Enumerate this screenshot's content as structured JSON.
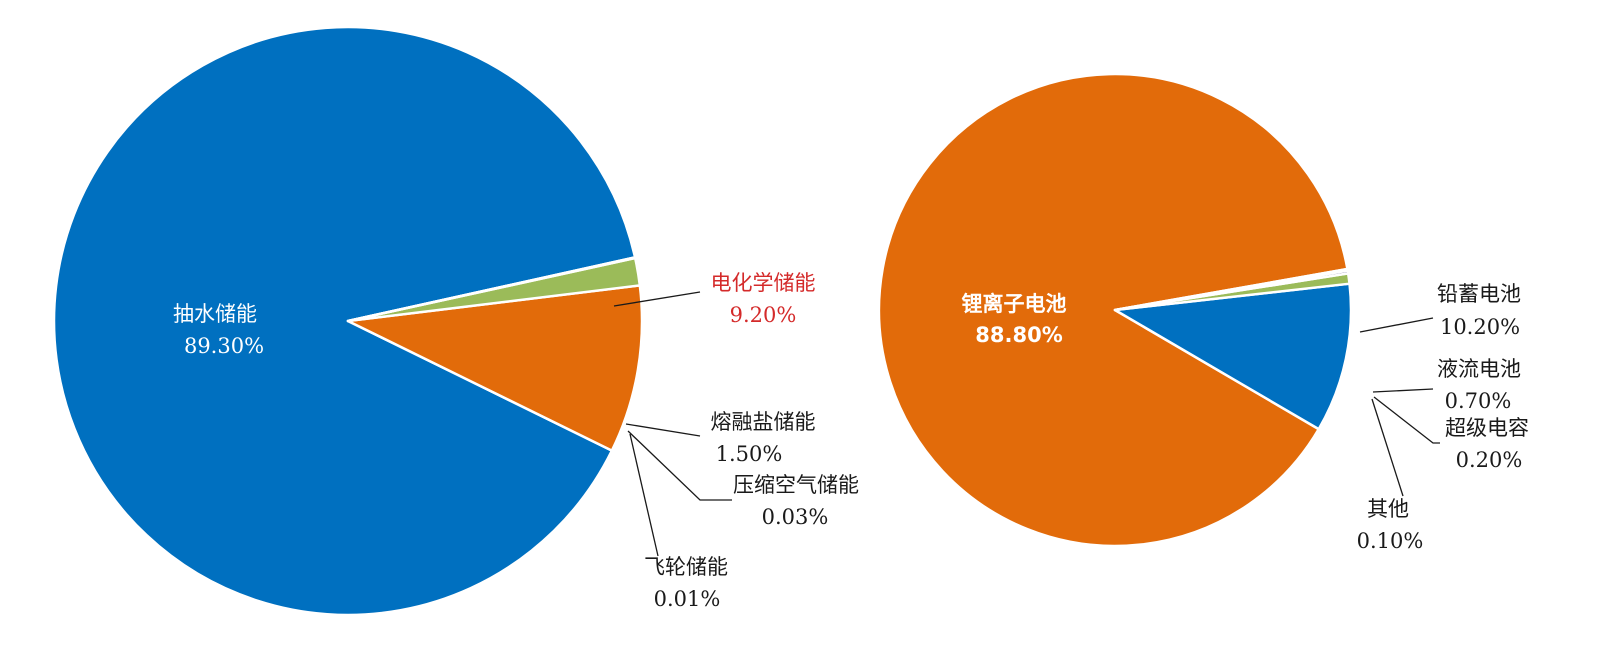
{
  "colors": {
    "blue": "#0070C0",
    "orange": "#E26B0A",
    "green": "#9BBB59",
    "gray": "#7f7fa8",
    "label_red": "#d42a2a",
    "slice_border": "#ffffff"
  },
  "chart_data": [
    {
      "type": "pie",
      "title": "",
      "start_angle_deg": -12.5,
      "direction": "counterclockwise",
      "series": [
        {
          "name": "抽水储能",
          "value": 89.3,
          "label": "89.30%",
          "color": "#0070C0",
          "label_placement": "inside"
        },
        {
          "name": "电化学储能",
          "value": 9.2,
          "label": "9.20%",
          "color": "#E26B0A",
          "label_placement": "outside",
          "label_color": "#d42a2a"
        },
        {
          "name": "熔融盐储能",
          "value": 1.5,
          "label": "1.50%",
          "color": "#9BBB59",
          "label_placement": "outside"
        },
        {
          "name": "压缩空气储能",
          "value": 0.03,
          "label": "0.03%",
          "color": "#0070C0",
          "label_placement": "outside"
        },
        {
          "name": "飞轮储能",
          "value": 0.01,
          "label": "0.01%",
          "color": "#0070C0",
          "label_placement": "outside"
        }
      ]
    },
    {
      "type": "pie",
      "title": "",
      "start_angle_deg": -10,
      "direction": "counterclockwise",
      "series": [
        {
          "name": "锂离子电池",
          "value": 88.8,
          "label": "88.80%",
          "color": "#E26B0A",
          "label_placement": "inside",
          "label_bold": true
        },
        {
          "name": "铅蓄电池",
          "value": 10.2,
          "label": "10.20%",
          "color": "#0070C0",
          "label_placement": "outside"
        },
        {
          "name": "液流电池",
          "value": 0.7,
          "label": "0.70%",
          "color": "#9BBB59",
          "label_placement": "outside"
        },
        {
          "name": "超级电容",
          "value": 0.2,
          "label": "0.20%",
          "color": "#7f7fa8",
          "label_placement": "outside"
        },
        {
          "name": "其他",
          "value": 0.1,
          "label": "0.10%",
          "color": "#E26B0A",
          "label_placement": "outside"
        }
      ]
    }
  ]
}
